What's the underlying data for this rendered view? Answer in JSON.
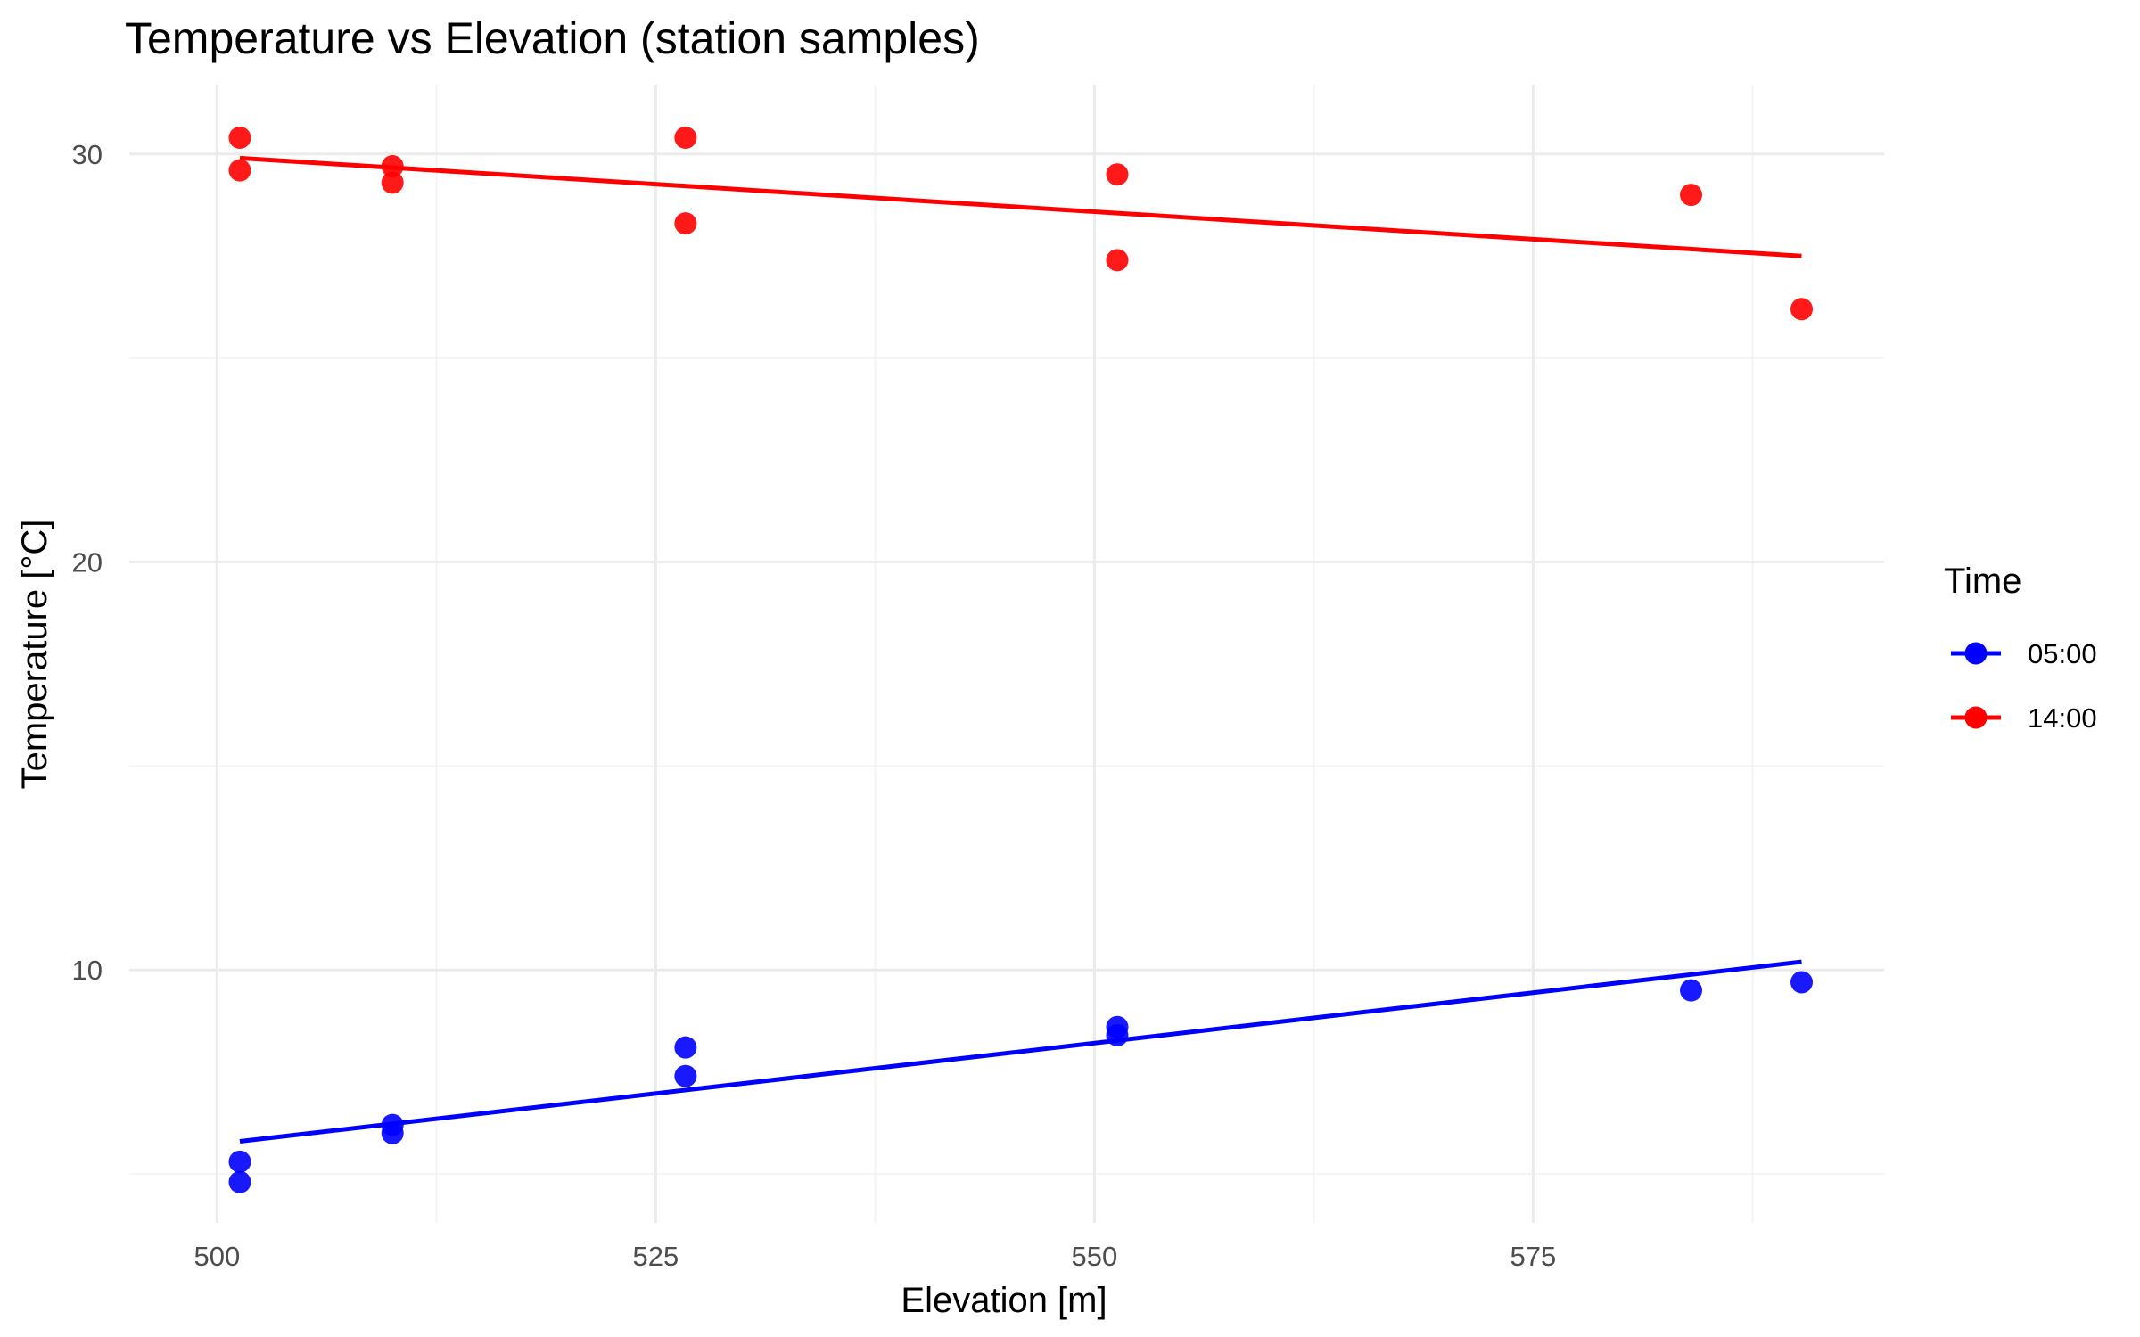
{
  "chart_data": {
    "type": "scatter",
    "title": "Temperature vs Elevation (station samples)",
    "xlabel": "Elevation [m]",
    "ylabel": "Temperature [°C]",
    "xlim": [
      495,
      595
    ],
    "ylim": [
      3.8,
      31.7
    ],
    "x_ticks": [
      500,
      525,
      550,
      575
    ],
    "x_tick_labels": [
      "500",
      "525",
      "550",
      "575"
    ],
    "y_ticks": [
      10,
      20,
      30
    ],
    "y_tick_labels": [
      "10",
      "20",
      "30"
    ],
    "grid": true,
    "legend": {
      "title": "Time",
      "position": "right"
    },
    "series": [
      {
        "name": "05:00",
        "color": "#0000ff",
        "points": [
          [
            501.3,
            5.3
          ],
          [
            501.3,
            4.8
          ],
          [
            510.0,
            6.2
          ],
          [
            510.0,
            6.0
          ],
          [
            526.7,
            7.4
          ],
          [
            526.7,
            8.1
          ],
          [
            551.3,
            8.6
          ],
          [
            551.3,
            8.4
          ],
          [
            584.0,
            9.5
          ],
          [
            590.3,
            9.7
          ]
        ],
        "fit": [
          [
            501.3,
            5.8
          ],
          [
            590.3,
            10.2
          ]
        ]
      },
      {
        "name": "14:00",
        "color": "#ff0000",
        "points": [
          [
            501.3,
            30.4
          ],
          [
            501.3,
            29.6
          ],
          [
            510.0,
            29.7
          ],
          [
            510.0,
            29.3
          ],
          [
            526.7,
            30.4
          ],
          [
            526.7,
            28.3
          ],
          [
            551.3,
            29.5
          ],
          [
            551.3,
            27.4
          ],
          [
            584.0,
            29.0
          ],
          [
            590.3,
            26.2
          ]
        ],
        "fit": [
          [
            501.3,
            29.9
          ],
          [
            590.3,
            27.5
          ]
        ]
      }
    ]
  }
}
